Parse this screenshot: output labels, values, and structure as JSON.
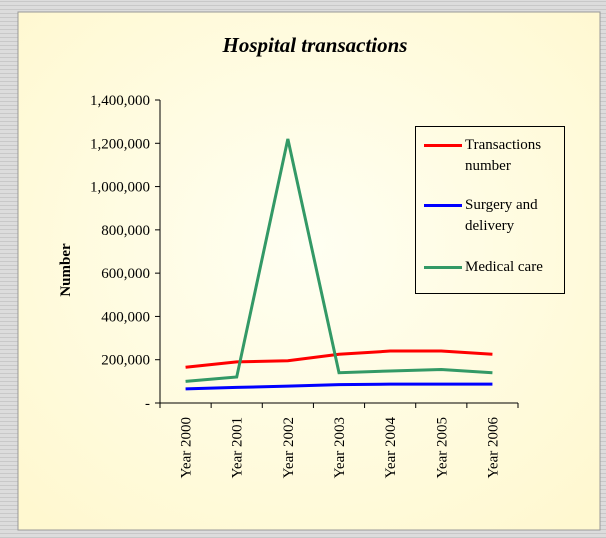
{
  "chart_data": {
    "type": "line",
    "title": "Hospital transactions",
    "y_label": "Number",
    "categories": [
      "Year 2000",
      "Year 2001",
      "Year 2002",
      "Year 2003",
      "Year 2004",
      "Year 2005",
      "Year 2006"
    ],
    "series": [
      {
        "name": "Transactions number",
        "color": "#ff0000",
        "values": [
          165000,
          190000,
          195000,
          225000,
          240000,
          240000,
          225000
        ]
      },
      {
        "name": "Surgery and delivery",
        "color": "#0000ff",
        "values": [
          65000,
          72000,
          78000,
          85000,
          87000,
          87000,
          87000
        ]
      },
      {
        "name": "Medical care",
        "color": "#339966",
        "values": [
          100000,
          120000,
          1220000,
          140000,
          148000,
          155000,
          140000
        ]
      }
    ],
    "ylim": [
      0,
      1400000
    ],
    "yticks": [
      {
        "value": 0,
        "label": "-"
      },
      {
        "value": 200000,
        "label": "200,000"
      },
      {
        "value": 400000,
        "label": "400,000"
      },
      {
        "value": 600000,
        "label": "600,000"
      },
      {
        "value": 800000,
        "label": "800,000"
      },
      {
        "value": 1000000,
        "label": "1,000,000"
      },
      {
        "value": 1200000,
        "label": "1,200,000"
      },
      {
        "value": 1400000,
        "label": "1,400,000"
      }
    ],
    "legend": "right"
  }
}
